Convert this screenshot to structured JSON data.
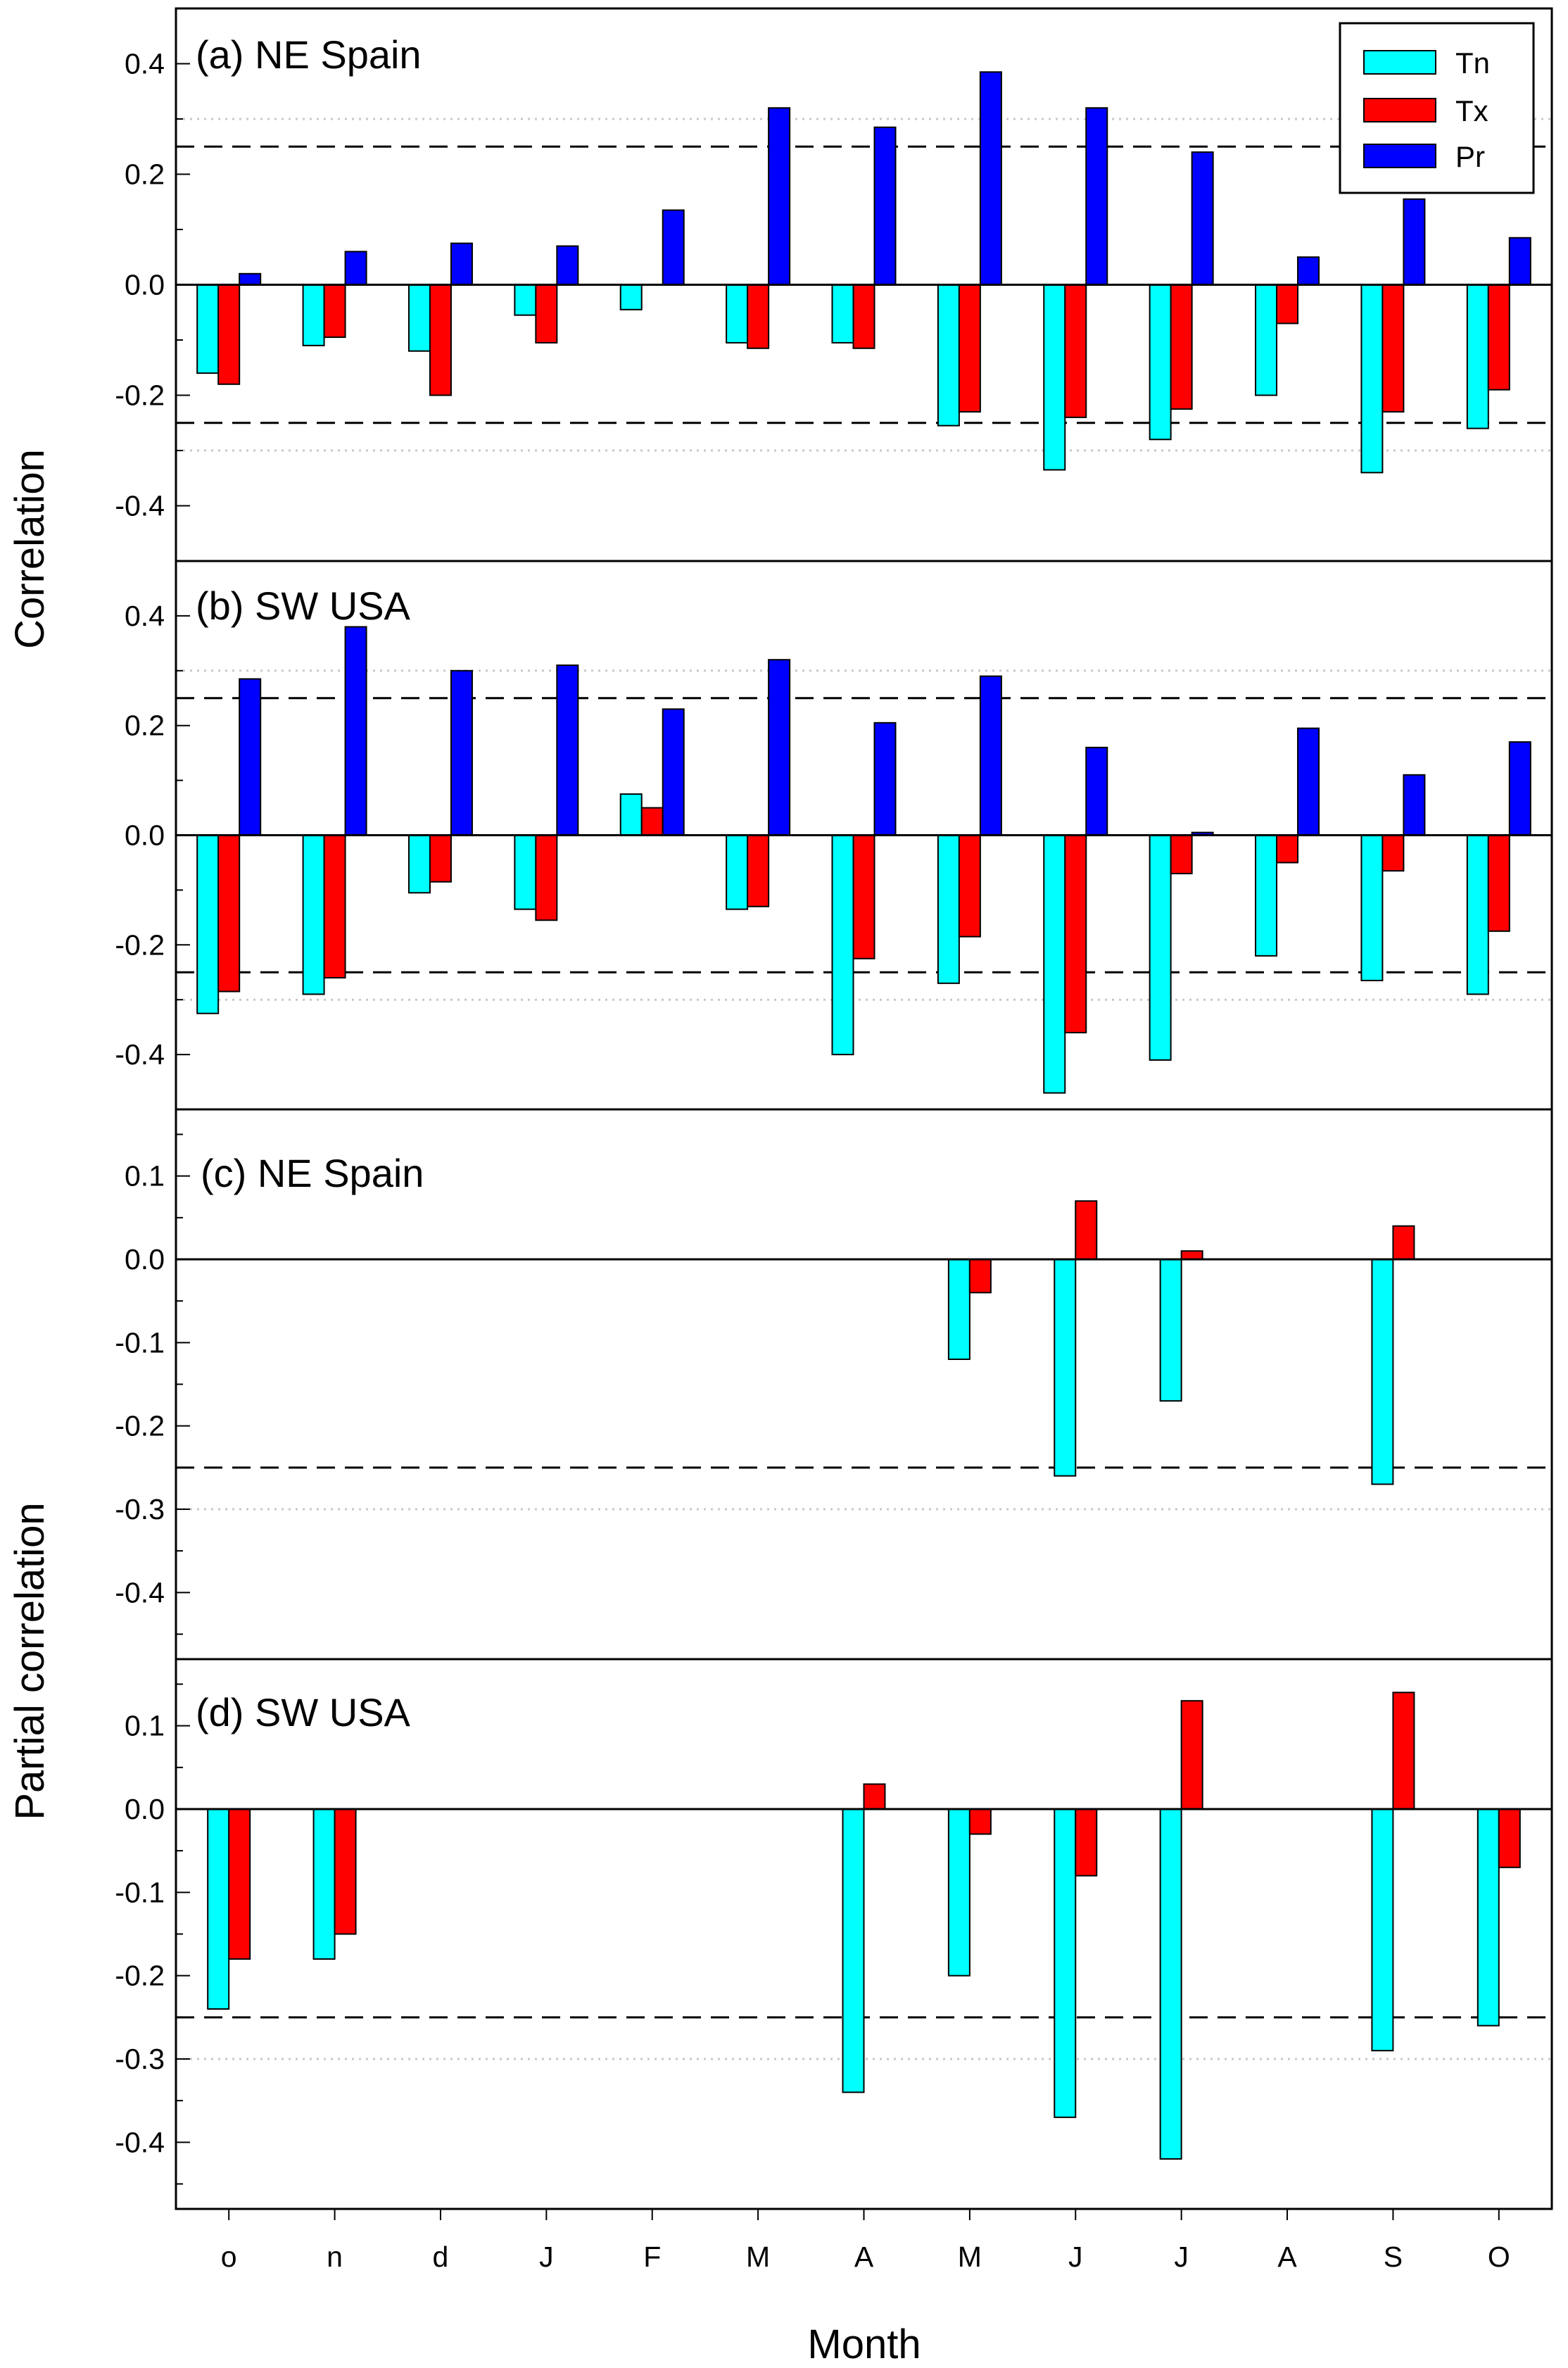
{
  "figure": {
    "ylabel_top": "Correlation",
    "ylabel_bottom": "Partial correlation",
    "xlabel": "Month"
  },
  "legend": {
    "items": [
      {
        "label": "Tn",
        "color": "#00FFFF"
      },
      {
        "label": "Tx",
        "color": "#FF0000"
      },
      {
        "label": "Pr",
        "color": "#0000FF"
      }
    ],
    "placement": "top-right"
  },
  "chart_data": [
    {
      "type": "bar",
      "title": "(a) NE Spain",
      "ylabel": "Correlation",
      "xlabel": "",
      "ylim": [
        -0.5,
        0.5
      ],
      "yticks": [
        -0.4,
        -0.2,
        0.0,
        0.2,
        0.4
      ],
      "ytick_labels": [
        "-0.4",
        "-0.2",
        "0.0",
        "0.2",
        "0.4"
      ],
      "minor_step": 0.1,
      "categories": [
        "o",
        "n",
        "d",
        "J",
        "F",
        "M",
        "A",
        "M",
        "J",
        "J",
        "A",
        "S",
        "O"
      ],
      "thresholds": {
        "dashed": [
          0.25,
          -0.25
        ],
        "dotted": [
          0.3,
          -0.3
        ]
      },
      "series": [
        {
          "name": "Tn",
          "values": [
            -0.16,
            -0.11,
            -0.12,
            -0.055,
            -0.045,
            -0.105,
            -0.105,
            -0.255,
            -0.335,
            -0.28,
            -0.2,
            -0.34,
            -0.26
          ]
        },
        {
          "name": "Tx",
          "values": [
            -0.18,
            -0.095,
            -0.2,
            -0.105,
            null,
            -0.115,
            -0.115,
            -0.23,
            -0.24,
            -0.225,
            -0.07,
            -0.23,
            -0.19
          ]
        },
        {
          "name": "Pr",
          "values": [
            0.02,
            0.06,
            0.075,
            0.07,
            0.135,
            0.32,
            0.285,
            0.385,
            0.32,
            0.24,
            0.05,
            0.155,
            0.085
          ]
        }
      ]
    },
    {
      "type": "bar",
      "title": "(b) SW USA",
      "ylabel": "Correlation",
      "xlabel": "",
      "ylim": [
        -0.5,
        0.5
      ],
      "yticks": [
        -0.4,
        -0.2,
        0.0,
        0.2,
        0.4
      ],
      "ytick_labels": [
        "-0.4",
        "-0.2",
        "0.0",
        "0.2",
        "0.4"
      ],
      "minor_step": 0.1,
      "categories": [
        "o",
        "n",
        "d",
        "J",
        "F",
        "M",
        "A",
        "M",
        "J",
        "J",
        "A",
        "S",
        "O"
      ],
      "thresholds": {
        "dashed": [
          0.25,
          -0.25
        ],
        "dotted": [
          0.3,
          -0.3
        ]
      },
      "series": [
        {
          "name": "Tn",
          "values": [
            -0.325,
            -0.29,
            -0.105,
            -0.135,
            0.075,
            -0.135,
            -0.4,
            -0.27,
            -0.47,
            -0.41,
            -0.22,
            -0.265,
            -0.29
          ]
        },
        {
          "name": "Tx",
          "values": [
            -0.285,
            -0.26,
            -0.085,
            -0.155,
            0.05,
            -0.13,
            -0.225,
            -0.185,
            -0.36,
            -0.07,
            -0.05,
            -0.065,
            -0.175
          ]
        },
        {
          "name": "Pr",
          "values": [
            0.285,
            0.38,
            0.3,
            0.31,
            0.23,
            0.32,
            0.205,
            0.29,
            0.16,
            0.005,
            0.195,
            0.11,
            0.17
          ]
        }
      ]
    },
    {
      "type": "bar",
      "title": "(c) NE Spain",
      "ylabel": "Partial correlation",
      "xlabel": "",
      "ylim": [
        -0.48,
        0.18
      ],
      "yticks": [
        -0.4,
        -0.3,
        -0.2,
        -0.1,
        0.0,
        0.1
      ],
      "ytick_labels": [
        "-0.4",
        "-0.3",
        "-0.2",
        "-0.1",
        "0.0",
        "0.1"
      ],
      "minor_step": 0.05,
      "categories": [
        "o",
        "n",
        "d",
        "J",
        "F",
        "M",
        "A",
        "M",
        "J",
        "J",
        "A",
        "S",
        "O"
      ],
      "thresholds": {
        "dashed": [
          -0.25
        ],
        "dotted": [
          -0.3
        ]
      },
      "series": [
        {
          "name": "Tn",
          "values": [
            null,
            null,
            null,
            null,
            null,
            null,
            null,
            -0.12,
            -0.26,
            -0.17,
            null,
            -0.27,
            null
          ]
        },
        {
          "name": "Tx",
          "values": [
            null,
            null,
            null,
            null,
            null,
            null,
            null,
            -0.04,
            0.07,
            0.01,
            null,
            0.04,
            null
          ]
        }
      ]
    },
    {
      "type": "bar",
      "title": "(d) SW USA",
      "ylabel": "Partial correlation",
      "xlabel": "Month",
      "ylim": [
        -0.48,
        0.18
      ],
      "yticks": [
        -0.4,
        -0.3,
        -0.2,
        -0.1,
        0.0,
        0.1
      ],
      "ytick_labels": [
        "-0.4",
        "-0.3",
        "-0.2",
        "-0.1",
        "0.0",
        "0.1"
      ],
      "minor_step": 0.05,
      "categories": [
        "o",
        "n",
        "d",
        "J",
        "F",
        "M",
        "A",
        "M",
        "J",
        "J",
        "A",
        "S",
        "O"
      ],
      "thresholds": {
        "dashed": [
          -0.25
        ],
        "dotted": [
          -0.3
        ]
      },
      "series": [
        {
          "name": "Tn",
          "values": [
            -0.24,
            -0.18,
            null,
            null,
            null,
            null,
            -0.34,
            -0.2,
            -0.37,
            -0.42,
            null,
            -0.29,
            -0.26
          ]
        },
        {
          "name": "Tx",
          "values": [
            -0.18,
            -0.15,
            null,
            null,
            null,
            null,
            0.03,
            -0.03,
            -0.08,
            0.13,
            null,
            0.14,
            -0.07
          ]
        }
      ]
    }
  ]
}
